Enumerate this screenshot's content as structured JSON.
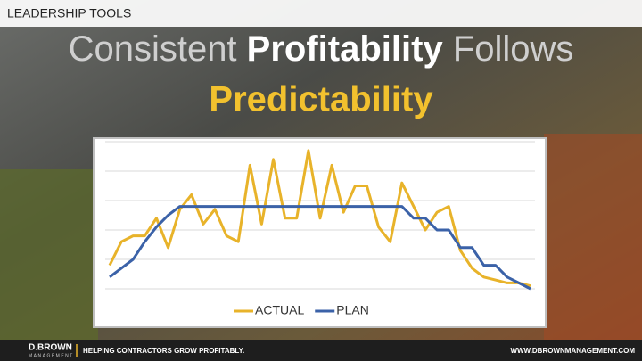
{
  "slide": {
    "section": "LEADERSHIP TOOLS",
    "title_parts": [
      "Consistent",
      "Profitability",
      "Follows"
    ],
    "subtitle": "Predictability"
  },
  "footer": {
    "logo": "D.BROWN",
    "logo_sub": "MANAGEMENT",
    "tagline": "HELPING CONTRACTORS GROW PROFITABLY.",
    "url": "WWW.DBROWNMANAGEMENT.COM"
  },
  "chart_data": {
    "type": "line",
    "categories": [
      null,
      null,
      null,
      null,
      null,
      null,
      null,
      null,
      null,
      null,
      null,
      null,
      null,
      null,
      null,
      null,
      null,
      null,
      null,
      null,
      null,
      null,
      null,
      null,
      null,
      null,
      null,
      null,
      null,
      null,
      null,
      null,
      null,
      null,
      null,
      null,
      null
    ],
    "series": [
      {
        "name": "ACTUAL",
        "color": "#e8b32a",
        "values": [
          0.8,
          1.6,
          1.8,
          1.8,
          2.4,
          1.4,
          2.7,
          3.2,
          2.2,
          2.7,
          1.8,
          1.6,
          4.2,
          2.2,
          4.4,
          2.4,
          2.4,
          4.7,
          2.4,
          4.2,
          2.6,
          3.5,
          3.5,
          2.1,
          1.6,
          3.6,
          2.8,
          2.0,
          2.6,
          2.8,
          1.3,
          0.7,
          0.4,
          0.3,
          0.2,
          0.2,
          0.1
        ]
      },
      {
        "name": "PLAN",
        "color": "#3b62a8",
        "values": [
          0.4,
          0.7,
          1.0,
          1.6,
          2.1,
          2.5,
          2.8,
          2.8,
          2.8,
          2.8,
          2.8,
          2.8,
          2.8,
          2.8,
          2.8,
          2.8,
          2.8,
          2.8,
          2.8,
          2.8,
          2.8,
          2.8,
          2.8,
          2.8,
          2.8,
          2.8,
          2.4,
          2.4,
          2.0,
          2.0,
          1.4,
          1.4,
          0.8,
          0.8,
          0.4,
          0.2,
          0.0
        ]
      }
    ],
    "ylim": [
      0,
      5
    ],
    "yticks": [
      0,
      1,
      2,
      3,
      4,
      5
    ],
    "grid": true,
    "legend": "bottom"
  }
}
